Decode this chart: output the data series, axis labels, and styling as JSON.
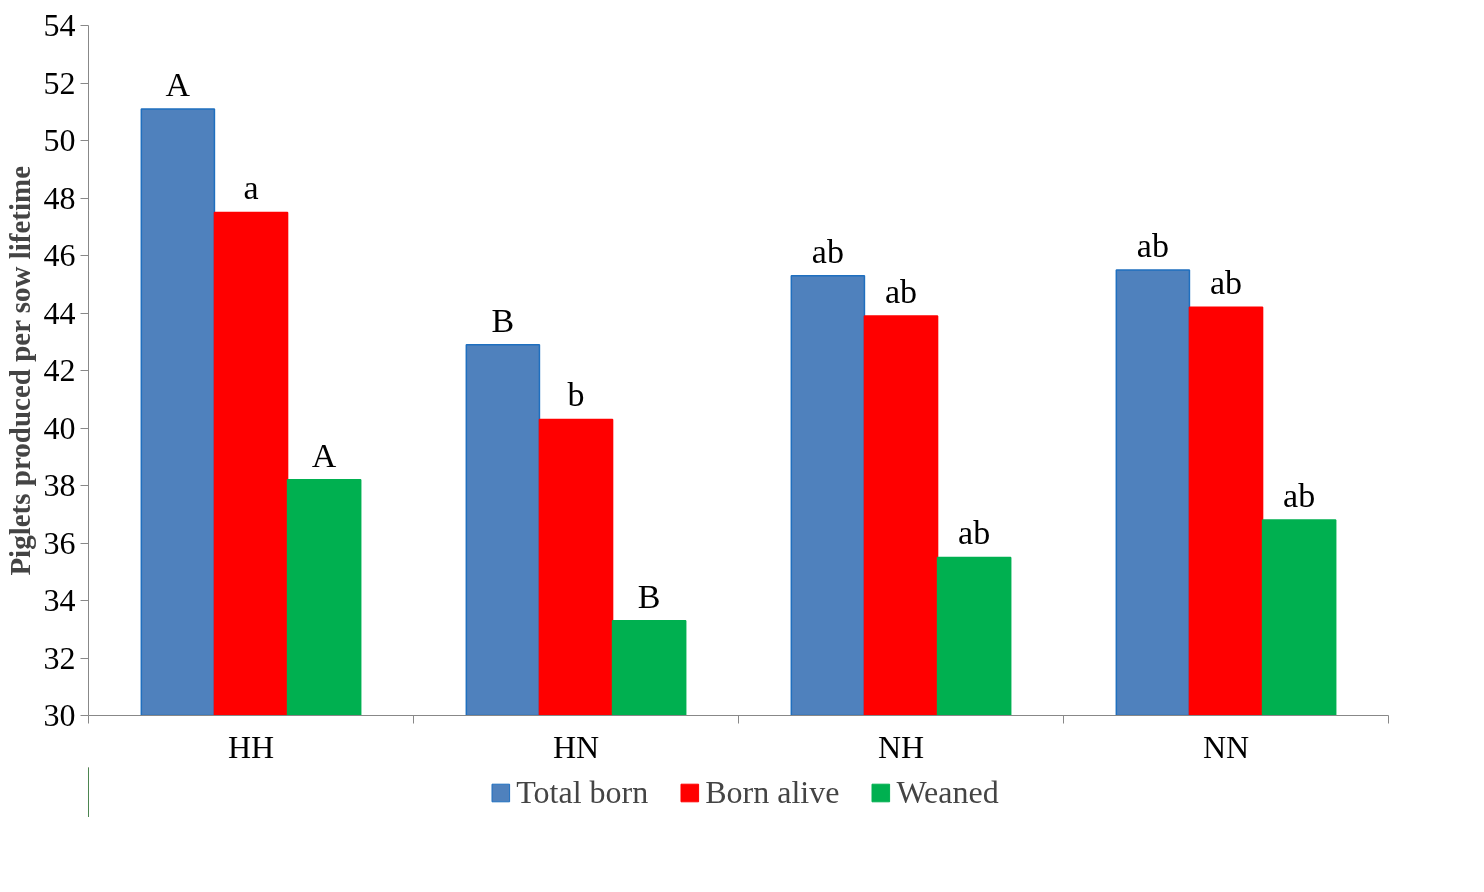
{
  "chart_data": {
    "type": "bar",
    "ylabel": "Piglets produced per sow lifetime",
    "categories": [
      "HH",
      "HN",
      "NH",
      "NN"
    ],
    "series": [
      {
        "name": "Total born",
        "color": "#4f81bd",
        "values": [
          51.1,
          42.9,
          45.3,
          45.5
        ],
        "value_labels": [
          "A",
          "B",
          "ab",
          "ab"
        ]
      },
      {
        "name": "Born alive",
        "color": "#ff0000",
        "values": [
          47.5,
          40.3,
          43.9,
          44.2
        ],
        "value_labels": [
          "a",
          "b",
          "ab",
          "ab"
        ]
      },
      {
        "name": "Weaned",
        "color": "#00b050",
        "values": [
          38.2,
          33.3,
          35.5,
          36.8
        ],
        "value_labels": [
          "A",
          "B",
          "ab",
          "ab"
        ]
      }
    ],
    "ylim": [
      30,
      54
    ],
    "yticks": [
      30,
      32,
      34,
      36,
      38,
      40,
      42,
      44,
      46,
      48,
      50,
      52,
      54
    ],
    "grid": false,
    "legend": "bottom"
  }
}
